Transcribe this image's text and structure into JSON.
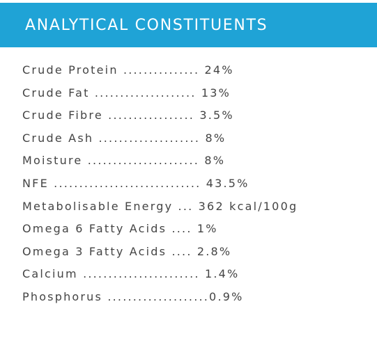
{
  "colors": {
    "header_background": "#1fa3d6",
    "header_text": "#ffffff",
    "body_text": "#444444"
  },
  "section": {
    "title": "ANALYTICAL CONSTITUENTS"
  },
  "constituents": [
    {
      "text": "Crude Protein ............... 24%"
    },
    {
      "text": "Crude Fat .................... 13%"
    },
    {
      "text": "Crude Fibre ................. 3.5%"
    },
    {
      "text": "Crude Ash .................... 8%"
    },
    {
      "text": "Moisture ...................... 8%"
    },
    {
      "text": "NFE ............................. 43.5%"
    },
    {
      "text": "Metabolisable Energy ... 362 kcal/100g"
    },
    {
      "text": "Omega 6 Fatty Acids .... 1%"
    },
    {
      "text": "Omega 3 Fatty Acids .... 2.8%"
    },
    {
      "text": "Calcium ....................... 1.4%"
    },
    {
      "text": "Phosphorus ....................0.9%"
    }
  ]
}
